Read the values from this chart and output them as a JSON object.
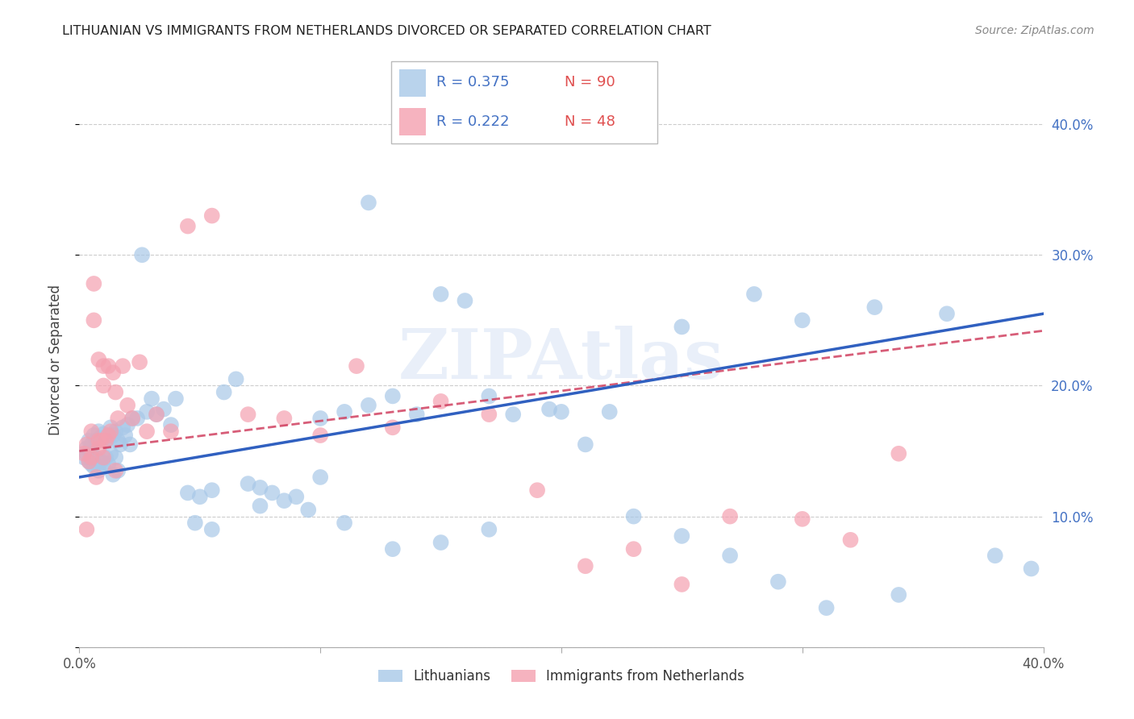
{
  "title": "LITHUANIAN VS IMMIGRANTS FROM NETHERLANDS DIVORCED OR SEPARATED CORRELATION CHART",
  "source": "Source: ZipAtlas.com",
  "ylabel": "Divorced or Separated",
  "xlim": [
    0.0,
    0.4
  ],
  "ylim": [
    0.0,
    0.44
  ],
  "legend_blue_r": "0.375",
  "legend_blue_n": "90",
  "legend_pink_r": "0.222",
  "legend_pink_n": "48",
  "legend_label_blue": "Lithuanians",
  "legend_label_pink": "Immigrants from Netherlands",
  "blue_color": "#a8c8e8",
  "pink_color": "#f4a0b0",
  "blue_line_color": "#3060c0",
  "pink_line_color": "#d04060",
  "watermark": "ZIPAtlas",
  "blue_line_x0": 0.0,
  "blue_line_y0": 0.13,
  "blue_line_x1": 0.4,
  "blue_line_y1": 0.255,
  "pink_line_x0": 0.0,
  "pink_line_y0": 0.15,
  "pink_line_x1": 0.4,
  "pink_line_y1": 0.242,
  "blue_points_x": [
    0.002,
    0.003,
    0.003,
    0.004,
    0.004,
    0.005,
    0.005,
    0.005,
    0.006,
    0.006,
    0.007,
    0.007,
    0.008,
    0.008,
    0.009,
    0.009,
    0.01,
    0.01,
    0.011,
    0.011,
    0.012,
    0.012,
    0.013,
    0.013,
    0.014,
    0.014,
    0.015,
    0.015,
    0.016,
    0.016,
    0.017,
    0.018,
    0.019,
    0.02,
    0.021,
    0.022,
    0.024,
    0.026,
    0.028,
    0.03,
    0.032,
    0.035,
    0.038,
    0.04,
    0.045,
    0.05,
    0.055,
    0.06,
    0.065,
    0.07,
    0.075,
    0.08,
    0.09,
    0.1,
    0.11,
    0.12,
    0.13,
    0.14,
    0.15,
    0.16,
    0.17,
    0.18,
    0.195,
    0.21,
    0.23,
    0.25,
    0.27,
    0.29,
    0.31,
    0.34,
    0.048,
    0.055,
    0.075,
    0.085,
    0.095,
    0.11,
    0.13,
    0.15,
    0.17,
    0.2,
    0.22,
    0.25,
    0.28,
    0.3,
    0.33,
    0.36,
    0.38,
    0.395,
    0.1,
    0.12
  ],
  "blue_points_y": [
    0.145,
    0.152,
    0.148,
    0.158,
    0.142,
    0.155,
    0.148,
    0.14,
    0.162,
    0.138,
    0.158,
    0.145,
    0.165,
    0.135,
    0.16,
    0.142,
    0.163,
    0.138,
    0.158,
    0.145,
    0.16,
    0.14,
    0.168,
    0.148,
    0.162,
    0.132,
    0.165,
    0.145,
    0.158,
    0.135,
    0.155,
    0.168,
    0.162,
    0.17,
    0.155,
    0.175,
    0.175,
    0.3,
    0.18,
    0.19,
    0.178,
    0.182,
    0.17,
    0.19,
    0.118,
    0.115,
    0.12,
    0.195,
    0.205,
    0.125,
    0.122,
    0.118,
    0.115,
    0.13,
    0.18,
    0.185,
    0.192,
    0.178,
    0.27,
    0.265,
    0.192,
    0.178,
    0.182,
    0.155,
    0.1,
    0.085,
    0.07,
    0.05,
    0.03,
    0.04,
    0.095,
    0.09,
    0.108,
    0.112,
    0.105,
    0.095,
    0.075,
    0.08,
    0.09,
    0.18,
    0.18,
    0.245,
    0.27,
    0.25,
    0.26,
    0.255,
    0.07,
    0.06,
    0.175,
    0.34
  ],
  "pink_points_x": [
    0.002,
    0.003,
    0.004,
    0.005,
    0.005,
    0.006,
    0.007,
    0.008,
    0.008,
    0.009,
    0.01,
    0.01,
    0.011,
    0.012,
    0.013,
    0.014,
    0.015,
    0.016,
    0.018,
    0.02,
    0.022,
    0.025,
    0.028,
    0.032,
    0.038,
    0.045,
    0.055,
    0.07,
    0.085,
    0.1,
    0.115,
    0.13,
    0.15,
    0.17,
    0.19,
    0.21,
    0.23,
    0.25,
    0.27,
    0.3,
    0.32,
    0.34,
    0.003,
    0.006,
    0.008,
    0.01,
    0.012,
    0.015
  ],
  "pink_points_y": [
    0.148,
    0.155,
    0.142,
    0.165,
    0.145,
    0.278,
    0.13,
    0.152,
    0.22,
    0.158,
    0.2,
    0.145,
    0.158,
    0.215,
    0.165,
    0.21,
    0.195,
    0.175,
    0.215,
    0.185,
    0.175,
    0.218,
    0.165,
    0.178,
    0.165,
    0.322,
    0.33,
    0.178,
    0.175,
    0.162,
    0.215,
    0.168,
    0.188,
    0.178,
    0.12,
    0.062,
    0.075,
    0.048,
    0.1,
    0.098,
    0.082,
    0.148,
    0.09,
    0.25,
    0.158,
    0.215,
    0.162,
    0.135
  ]
}
